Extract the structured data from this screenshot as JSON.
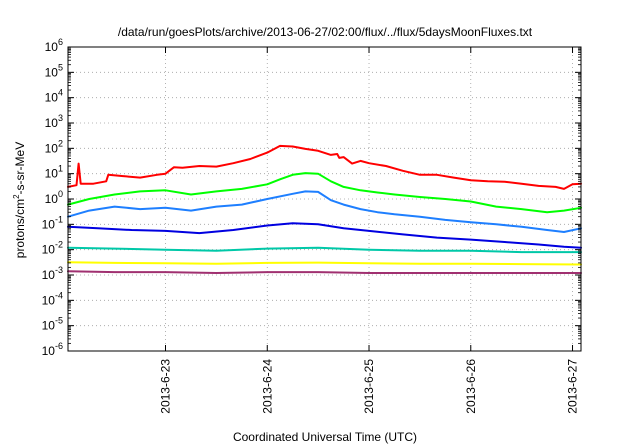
{
  "chart_data": {
    "type": "line",
    "title": "/data/run/goesPlots/archive/2013-06-27/02:00/flux/../flux/5daysMoonFluxes.txt",
    "xlabel": "Coordinated Universal Time (UTC)",
    "ylabel_parts": {
      "pre": "protons/cm",
      "sup": "2",
      "post": "-s-sr-MeV"
    },
    "xlim": [
      "2013-06-22 01:00",
      "2013-06-27 02:00"
    ],
    "ylim": [
      1e-06,
      1000000.0
    ],
    "yscale": "log",
    "grid": true,
    "x_ticks": [
      {
        "label": "2013-6-23",
        "t": "2013-06-23 00:00"
      },
      {
        "label": "2013-6-24",
        "t": "2013-06-24 00:00"
      },
      {
        "label": "2013-6-25",
        "t": "2013-06-25 00:00"
      },
      {
        "label": "2013-6-26",
        "t": "2013-06-26 00:00"
      },
      {
        "label": "2013-6-27",
        "t": "2013-06-27 00:00"
      }
    ],
    "y_ticks": [
      {
        "base": "10",
        "exp": "6",
        "value": 1000000.0
      },
      {
        "base": "10",
        "exp": "5",
        "value": 100000.0
      },
      {
        "base": "10",
        "exp": "4",
        "value": 10000.0
      },
      {
        "base": "10",
        "exp": "3",
        "value": 1000.0
      },
      {
        "base": "10",
        "exp": "2",
        "value": 100.0
      },
      {
        "base": "10",
        "exp": "1",
        "value": 10.0
      },
      {
        "base": "10",
        "exp": "0",
        "value": 1.0
      },
      {
        "base": "10",
        "exp": "-1",
        "value": 0.1
      },
      {
        "base": "10",
        "exp": "-2",
        "value": 0.01
      },
      {
        "base": "10",
        "exp": "-3",
        "value": 0.001
      },
      {
        "base": "10",
        "exp": "-4",
        "value": 0.0001
      },
      {
        "base": "10",
        "exp": "-5",
        "value": 1e-05
      },
      {
        "base": "10",
        "exp": "-6",
        "value": 1e-06
      }
    ],
    "series": [
      {
        "color": "#ff0000",
        "x": [
          "2013-06-22 01:00",
          "2013-06-22 03:00",
          "2013-06-22 03:30",
          "2013-06-22 04:00",
          "2013-06-22 07:00",
          "2013-06-22 10:00",
          "2013-06-22 10:30",
          "2013-06-22 14:00",
          "2013-06-22 18:00",
          "2013-06-22 22:00",
          "2013-06-23 00:00",
          "2013-06-23 02:00",
          "2013-06-23 04:00",
          "2013-06-23 08:00",
          "2013-06-23 12:00",
          "2013-06-23 16:00",
          "2013-06-23 20:00",
          "2013-06-24 00:00",
          "2013-06-24 03:00",
          "2013-06-24 06:00",
          "2013-06-24 09:00",
          "2013-06-24 12:00",
          "2013-06-24 15:00",
          "2013-06-24 16:30",
          "2013-06-24 17:00",
          "2013-06-24 18:00",
          "2013-06-24 20:00",
          "2013-06-24 22:00",
          "2013-06-25 00:00",
          "2013-06-25 04:00",
          "2013-06-25 08:00",
          "2013-06-25 12:00",
          "2013-06-25 16:00",
          "2013-06-25 20:00",
          "2013-06-26 00:00",
          "2013-06-26 04:00",
          "2013-06-26 08:00",
          "2013-06-26 12:00",
          "2013-06-26 16:00",
          "2013-06-26 20:00",
          "2013-06-26 22:00",
          "2013-06-27 00:00",
          "2013-06-27 02:00"
        ],
        "y": [
          3,
          3.5,
          25,
          4,
          4,
          5,
          9,
          8,
          7,
          9,
          10,
          18,
          17,
          20,
          19,
          26,
          38,
          68,
          125,
          118,
          95,
          80,
          55,
          60,
          42,
          45,
          25,
          32,
          26,
          20,
          13,
          9,
          9,
          7,
          5.5,
          5,
          4.8,
          4,
          3.3,
          3,
          2.5,
          3.8,
          4
        ]
      },
      {
        "color": "#00ff00",
        "x": [
          "2013-06-22 01:00",
          "2013-06-22 06:00",
          "2013-06-22 12:00",
          "2013-06-22 18:00",
          "2013-06-23 00:00",
          "2013-06-23 06:00",
          "2013-06-23 12:00",
          "2013-06-23 18:00",
          "2013-06-24 00:00",
          "2013-06-24 03:00",
          "2013-06-24 06:00",
          "2013-06-24 09:00",
          "2013-06-24 12:00",
          "2013-06-24 15:00",
          "2013-06-24 18:00",
          "2013-06-24 22:00",
          "2013-06-25 02:00",
          "2013-06-25 06:00",
          "2013-06-25 12:00",
          "2013-06-25 18:00",
          "2013-06-26 00:00",
          "2013-06-26 06:00",
          "2013-06-26 12:00",
          "2013-06-26 18:00",
          "2013-06-26 22:00",
          "2013-06-27 02:00"
        ],
        "y": [
          0.6,
          1,
          1.5,
          2,
          2.2,
          1.5,
          2,
          2.5,
          3.8,
          6,
          9,
          10.5,
          10,
          5,
          3,
          2.2,
          1.8,
          1.5,
          1.2,
          1,
          0.8,
          0.5,
          0.4,
          0.3,
          0.35,
          0.45
        ]
      },
      {
        "color": "#1e7fff",
        "x": [
          "2013-06-22 01:00",
          "2013-06-22 06:00",
          "2013-06-22 12:00",
          "2013-06-22 18:00",
          "2013-06-23 00:00",
          "2013-06-23 06:00",
          "2013-06-23 12:00",
          "2013-06-23 18:00",
          "2013-06-24 00:00",
          "2013-06-24 06:00",
          "2013-06-24 09:00",
          "2013-06-24 12:00",
          "2013-06-24 15:00",
          "2013-06-24 18:00",
          "2013-06-24 22:00",
          "2013-06-25 02:00",
          "2013-06-25 06:00",
          "2013-06-25 12:00",
          "2013-06-25 18:00",
          "2013-06-26 00:00",
          "2013-06-26 06:00",
          "2013-06-26 12:00",
          "2013-06-26 18:00",
          "2013-06-26 22:00",
          "2013-06-27 02:00"
        ],
        "y": [
          0.2,
          0.35,
          0.5,
          0.4,
          0.45,
          0.35,
          0.5,
          0.6,
          1,
          1.6,
          2,
          1.9,
          0.9,
          0.6,
          0.4,
          0.3,
          0.25,
          0.2,
          0.15,
          0.12,
          0.1,
          0.08,
          0.06,
          0.05,
          0.07
        ]
      },
      {
        "color": "#0000e0",
        "x": [
          "2013-06-22 01:00",
          "2013-06-22 08:00",
          "2013-06-22 16:00",
          "2013-06-23 00:00",
          "2013-06-23 08:00",
          "2013-06-23 16:00",
          "2013-06-24 00:00",
          "2013-06-24 06:00",
          "2013-06-24 12:00",
          "2013-06-24 18:00",
          "2013-06-25 00:00",
          "2013-06-25 08:00",
          "2013-06-25 16:00",
          "2013-06-26 00:00",
          "2013-06-26 08:00",
          "2013-06-26 16:00",
          "2013-06-26 22:00",
          "2013-06-27 02:00"
        ],
        "y": [
          0.08,
          0.07,
          0.06,
          0.055,
          0.045,
          0.06,
          0.09,
          0.11,
          0.1,
          0.07,
          0.055,
          0.04,
          0.03,
          0.025,
          0.02,
          0.016,
          0.013,
          0.012
        ]
      },
      {
        "color": "#00c8a8",
        "x": [
          "2013-06-22 01:00",
          "2013-06-22 12:00",
          "2013-06-23 00:00",
          "2013-06-23 12:00",
          "2013-06-24 00:00",
          "2013-06-24 12:00",
          "2013-06-25 00:00",
          "2013-06-25 12:00",
          "2013-06-26 00:00",
          "2013-06-26 12:00",
          "2013-06-27 02:00"
        ],
        "y": [
          0.012,
          0.011,
          0.01,
          0.009,
          0.011,
          0.012,
          0.01,
          0.009,
          0.009,
          0.008,
          0.008
        ]
      },
      {
        "color": "#ffff00",
        "x": [
          "2013-06-22 01:00",
          "2013-06-22 12:00",
          "2013-06-23 00:00",
          "2013-06-23 12:00",
          "2013-06-24 00:00",
          "2013-06-24 12:00",
          "2013-06-25 00:00",
          "2013-06-25 12:00",
          "2013-06-26 00:00",
          "2013-06-26 12:00",
          "2013-06-27 02:00"
        ],
        "y": [
          0.0032,
          0.003,
          0.0029,
          0.0028,
          0.003,
          0.0031,
          0.0029,
          0.0028,
          0.0028,
          0.0027,
          0.0026
        ]
      },
      {
        "color": "#a03070",
        "x": [
          "2013-06-22 01:00",
          "2013-06-22 12:00",
          "2013-06-23 00:00",
          "2013-06-23 12:00",
          "2013-06-24 00:00",
          "2013-06-24 12:00",
          "2013-06-25 00:00",
          "2013-06-25 12:00",
          "2013-06-26 00:00",
          "2013-06-26 12:00",
          "2013-06-27 02:00"
        ],
        "y": [
          0.0014,
          0.0013,
          0.0013,
          0.0012,
          0.0013,
          0.0013,
          0.0012,
          0.0012,
          0.0012,
          0.0012,
          0.0012
        ]
      }
    ]
  }
}
